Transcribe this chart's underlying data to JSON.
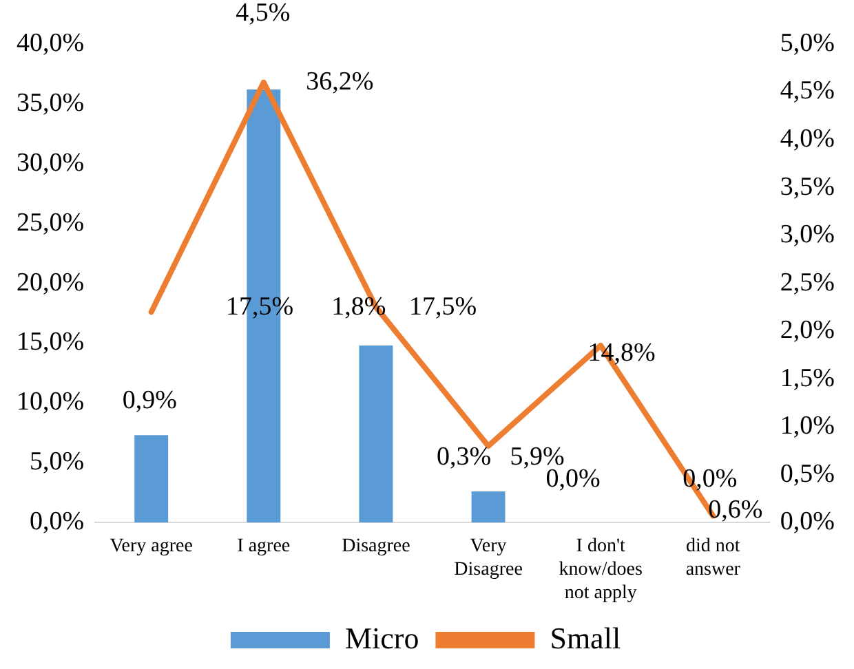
{
  "chart_data": {
    "type": "bar",
    "categories": [
      "Very agree",
      "I agree",
      "Disagree",
      "Very Disagree",
      "I don't know/does not apply",
      "did not answer"
    ],
    "series": [
      {
        "name": "Micro",
        "color": "#5b9bd5",
        "values": [
          7.3,
          36.2,
          14.8,
          2.6,
          0,
          0
        ]
      },
      {
        "name": "Small",
        "type": "line",
        "axis": "y2",
        "color": "#ed7d31",
        "values": [
          2.2,
          4.6,
          2.25,
          0.8,
          1.85,
          0.07
        ]
      }
    ],
    "ylim": [
      0,
      40
    ],
    "yticks": [
      {
        "value": 0,
        "label": "0,0%"
      },
      {
        "value": 5,
        "label": "5,0%"
      },
      {
        "value": 10,
        "label": "10,0%"
      },
      {
        "value": 15,
        "label": "15,0%"
      },
      {
        "value": 20,
        "label": "20,0%"
      },
      {
        "value": 25,
        "label": "25,0%"
      },
      {
        "value": 30,
        "label": "30,0%"
      },
      {
        "value": 35,
        "label": "35,0%"
      },
      {
        "value": 40,
        "label": "40,0%"
      }
    ],
    "y2lim": [
      0,
      5
    ],
    "y2ticks": [
      {
        "value": 0,
        "label": "0,0%"
      },
      {
        "value": 0.5,
        "label": "0,5%"
      },
      {
        "value": 1,
        "label": "1,0%"
      },
      {
        "value": 1.5,
        "label": "1,5%"
      },
      {
        "value": 2,
        "label": "2,0%"
      },
      {
        "value": 2.5,
        "label": "2,5%"
      },
      {
        "value": 3,
        "label": "3,0%"
      },
      {
        "value": 3.5,
        "label": "3,5%"
      },
      {
        "value": 4,
        "label": "4,0%"
      },
      {
        "value": 4.5,
        "label": "4,5%"
      },
      {
        "value": 5,
        "label": "5,0%"
      }
    ],
    "annotations": [
      "0,9%",
      "4,5%",
      "17,5%",
      "36,2%",
      "1,8%",
      "17,5%",
      "0,3%",
      "14,8%",
      "5,9%",
      "0,0%",
      "0,0%",
      "0,6%"
    ],
    "legend": "bottom",
    "grid": false
  }
}
